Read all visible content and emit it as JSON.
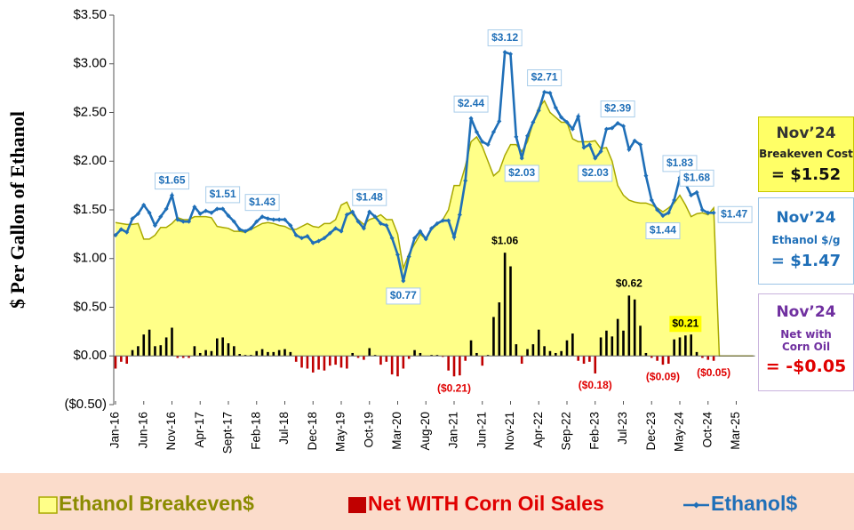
{
  "chart_data": {
    "type": "combo",
    "y_label": "$ Per Gallon of Ethanol",
    "ylim": [
      -0.5,
      3.5
    ],
    "yticks": [
      {
        "value": -0.5,
        "label": "($0.50)"
      },
      {
        "value": 0,
        "label": "$0.00"
      },
      {
        "value": 0.5,
        "label": "$0.50"
      },
      {
        "value": 1,
        "label": "$1.00"
      },
      {
        "value": 1.5,
        "label": "$1.50"
      },
      {
        "value": 2,
        "label": "$2.00"
      },
      {
        "value": 2.5,
        "label": "$2.50"
      },
      {
        "value": 3,
        "label": "$3.00"
      },
      {
        "value": 3.5,
        "label": "$3.50"
      }
    ],
    "negative_label_color": "#e00000",
    "categories": [
      "Jan-16",
      null,
      null,
      null,
      null,
      "Jun-16",
      null,
      null,
      null,
      null,
      "Nov-16",
      null,
      null,
      null,
      null,
      "Apr-17",
      null,
      null,
      null,
      null,
      "Sept-17",
      null,
      null,
      null,
      null,
      "Feb-18",
      null,
      null,
      null,
      null,
      "Jul-18",
      null,
      null,
      null,
      null,
      "Dec-18",
      null,
      null,
      null,
      null,
      "May-19",
      null,
      null,
      null,
      null,
      "Oct-19",
      null,
      null,
      null,
      null,
      "Mar-20",
      null,
      null,
      null,
      null,
      "Aug-20",
      null,
      null,
      null,
      null,
      "Jan-21",
      null,
      null,
      null,
      null,
      "Jun-21",
      null,
      null,
      null,
      null,
      "Nov-21",
      null,
      null,
      null,
      null,
      "Apr-22",
      null,
      null,
      null,
      null,
      "Sep-22",
      null,
      null,
      null,
      null,
      "Feb-23",
      null,
      null,
      null,
      null,
      "Jul-23",
      null,
      null,
      null,
      null,
      "Dec-23",
      null,
      null,
      null,
      null,
      "May-24",
      null,
      null,
      null,
      null,
      "Oct-24",
      null,
      null,
      null,
      null,
      "Mar-25",
      null,
      null,
      null
    ],
    "series": [
      {
        "name": "Ethanol Breakeven$",
        "type": "area",
        "color": "#ffff88",
        "edge_color": "#a8a800",
        "text_color": "#8b8b00",
        "values": [
          1.37,
          1.36,
          1.35,
          1.35,
          1.36,
          1.2,
          1.2,
          1.24,
          1.32,
          1.32,
          1.36,
          1.42,
          1.4,
          1.4,
          1.43,
          1.43,
          1.43,
          1.42,
          1.33,
          1.32,
          1.31,
          1.28,
          1.28,
          1.27,
          1.3,
          1.33,
          1.36,
          1.37,
          1.36,
          1.34,
          1.33,
          1.3,
          1.3,
          1.33,
          1.36,
          1.33,
          1.32,
          1.36,
          1.36,
          1.4,
          1.55,
          1.58,
          1.45,
          1.4,
          1.35,
          1.4,
          1.42,
          1.45,
          1.4,
          1.4,
          1.25,
          0.9,
          1.05,
          1.15,
          1.25,
          1.2,
          1.3,
          1.35,
          1.4,
          1.5,
          1.75,
          1.75,
          1.95,
          2.2,
          2.25,
          2.15,
          2.0,
          1.85,
          1.9,
          2.06,
          2.17,
          2.17,
          2.1,
          2.2,
          2.4,
          2.55,
          2.62,
          2.5,
          2.45,
          2.4,
          2.4,
          2.23,
          2.2,
          2.2,
          2.2,
          2.21,
          2.13,
          2.14,
          2.0,
          1.75,
          1.65,
          1.6,
          1.58,
          1.57,
          1.57,
          1.55,
          1.52,
          1.48,
          1.52,
          1.57,
          1.65,
          1.55,
          1.43,
          1.46,
          1.47,
          1.45,
          1.52,
          0,
          0,
          0,
          0,
          0,
          0,
          0
        ]
      },
      {
        "name": "Net WITH Corn Oil Sales",
        "type": "bar",
        "color": "#c00000",
        "positive_color": "#000000",
        "text_color": "#e00000",
        "values": [
          -0.13,
          -0.06,
          -0.08,
          0.06,
          0.1,
          0.22,
          0.27,
          0.1,
          0.11,
          0.19,
          0.29,
          -0.02,
          -0.02,
          -0.02,
          0.1,
          0.03,
          0.06,
          0.05,
          0.18,
          0.19,
          0.13,
          0.1,
          0.02,
          0.01,
          0.01,
          0.05,
          0.07,
          0.04,
          0.04,
          0.06,
          0.07,
          0.04,
          -0.06,
          -0.12,
          -0.13,
          -0.17,
          -0.14,
          -0.15,
          -0.1,
          -0.09,
          -0.12,
          -0.13,
          0.03,
          -0.02,
          -0.04,
          0.08,
          0.01,
          -0.09,
          -0.06,
          -0.19,
          -0.21,
          -0.13,
          -0.03,
          0.06,
          0.03,
          0.0,
          0.01,
          0.01,
          -0.01,
          -0.15,
          -0.21,
          -0.2,
          -0.05,
          0.16,
          0.03,
          -0.1,
          0.01,
          0.4,
          0.55,
          1.06,
          0.92,
          0.12,
          -0.08,
          0.07,
          0.12,
          0.27,
          0.1,
          0.05,
          0.03,
          0.05,
          0.16,
          0.23,
          -0.05,
          -0.08,
          -0.06,
          -0.18,
          0.19,
          0.26,
          0.2,
          0.38,
          0.26,
          0.62,
          0.58,
          0.31,
          0.03,
          -0.02,
          -0.05,
          -0.09,
          -0.08,
          0.17,
          0.19,
          0.21,
          0.22,
          0.04,
          -0.02,
          -0.04,
          -0.05,
          0,
          0,
          0,
          0,
          0,
          0,
          0
        ],
        "value_labels": [
          null,
          null,
          null,
          null,
          null,
          null,
          null,
          null,
          null,
          null,
          null,
          null,
          null,
          null,
          null,
          null,
          null,
          null,
          null,
          null,
          null,
          null,
          null,
          null,
          null,
          null,
          null,
          null,
          null,
          null,
          null,
          null,
          null,
          null,
          null,
          null,
          null,
          null,
          null,
          null,
          null,
          null,
          null,
          null,
          null,
          null,
          null,
          null,
          null,
          null,
          null,
          null,
          null,
          null,
          null,
          null,
          null,
          null,
          null,
          null,
          "($0.21)",
          null,
          null,
          null,
          null,
          null,
          null,
          null,
          null,
          "$1.06",
          null,
          null,
          null,
          null,
          null,
          null,
          null,
          null,
          null,
          null,
          null,
          null,
          null,
          null,
          null,
          "($0.18)",
          null,
          null,
          null,
          null,
          null,
          "$0.62",
          null,
          null,
          null,
          null,
          null,
          "($0.09)",
          null,
          null,
          null,
          "$0.21",
          null,
          null,
          null,
          null,
          "($0.05)",
          null,
          null,
          null,
          null,
          null,
          null,
          null
        ]
      },
      {
        "name": "Ethanol$",
        "type": "line",
        "color": "#1f6fb8",
        "values": [
          1.24,
          1.3,
          1.27,
          1.41,
          1.46,
          1.55,
          1.47,
          1.34,
          1.43,
          1.51,
          1.65,
          1.4,
          1.38,
          1.38,
          1.53,
          1.46,
          1.49,
          1.47,
          1.51,
          1.51,
          1.44,
          1.38,
          1.3,
          1.28,
          1.31,
          1.38,
          1.43,
          1.41,
          1.4,
          1.4,
          1.4,
          1.34,
          1.24,
          1.21,
          1.23,
          1.16,
          1.18,
          1.21,
          1.26,
          1.31,
          1.28,
          1.45,
          1.48,
          1.38,
          1.31,
          1.48,
          1.43,
          1.36,
          1.34,
          1.21,
          1.04,
          0.77,
          1.02,
          1.21,
          1.28,
          1.2,
          1.31,
          1.36,
          1.39,
          1.39,
          1.22,
          1.45,
          1.8,
          2.44,
          2.3,
          2.2,
          2.17,
          2.3,
          2.41,
          3.12,
          3.1,
          2.25,
          2.03,
          2.26,
          2.4,
          2.52,
          2.71,
          2.7,
          2.55,
          2.45,
          2.4,
          2.33,
          2.46,
          2.14,
          2.17,
          2.03,
          2.1,
          2.33,
          2.34,
          2.39,
          2.36,
          2.12,
          2.21,
          2.17,
          1.85,
          1.6,
          1.5,
          1.44,
          1.47,
          1.6,
          1.83,
          1.77,
          1.65,
          1.68,
          1.5,
          1.47,
          1.47,
          null,
          null,
          null,
          null,
          null,
          null,
          null
        ],
        "value_labels": [
          null,
          null,
          null,
          null,
          null,
          null,
          null,
          null,
          null,
          null,
          "$1.65",
          null,
          null,
          null,
          null,
          null,
          null,
          null,
          null,
          "$1.51",
          null,
          null,
          null,
          null,
          null,
          null,
          "$1.43",
          null,
          null,
          null,
          null,
          null,
          null,
          null,
          null,
          null,
          null,
          null,
          null,
          null,
          null,
          null,
          null,
          null,
          null,
          "$1.48",
          null,
          null,
          null,
          null,
          null,
          "$0.77",
          null,
          null,
          null,
          null,
          null,
          null,
          null,
          null,
          null,
          null,
          null,
          "$2.44",
          null,
          null,
          null,
          null,
          null,
          "$3.12",
          null,
          null,
          "$2.03",
          null,
          null,
          null,
          "$2.71",
          null,
          null,
          null,
          null,
          null,
          null,
          null,
          null,
          "$2.03",
          null,
          null,
          null,
          "$2.39",
          null,
          null,
          null,
          null,
          null,
          null,
          null,
          "$1.44",
          null,
          null,
          "$1.83",
          null,
          null,
          "$1.68",
          null,
          null,
          "$1.47",
          null,
          null,
          null,
          null,
          null,
          null,
          null
        ]
      }
    ]
  },
  "panels": [
    {
      "title": "Nov’24",
      "caption": "Breakeven Cost",
      "value": "= $1.52"
    },
    {
      "title": "Nov’24",
      "caption": "Ethanol $/g",
      "value": "= $1.47"
    },
    {
      "title": "Nov’24",
      "caption": "Net with Corn Oil",
      "value": "= -$0.05"
    }
  ]
}
